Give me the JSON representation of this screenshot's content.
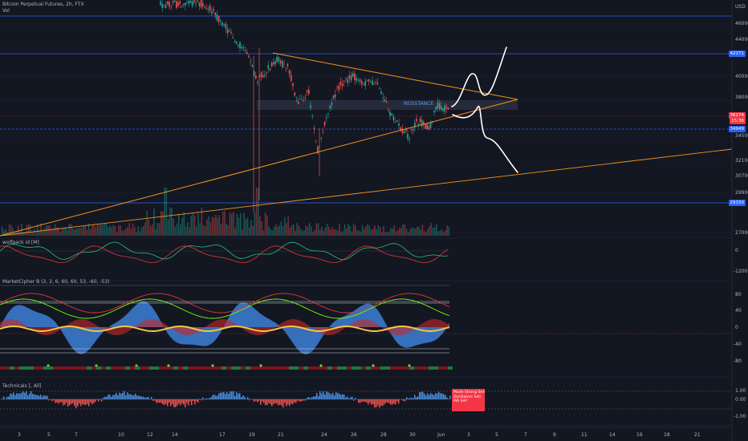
{
  "header": {
    "title": "Bitcoin Perpetual Futures, 2h, FTX",
    "vol": "Vol"
  },
  "annotations": {
    "resistance": "RESISTANCE"
  },
  "price_axis": {
    "ticks": [
      "46000",
      "44000",
      "40000",
      "38000",
      "34500",
      "32100",
      "30700",
      "29900",
      "27000"
    ],
    "tags": [
      {
        "text": "42271",
        "color": "#2962ff"
      },
      {
        "text": "36274",
        "color": "#f23645"
      },
      {
        "text": "15:36",
        "color": "#f23645"
      },
      {
        "text": "34949",
        "color": "#2962ff"
      },
      {
        "text": "29150",
        "color": "#2962ff"
      }
    ],
    "usd": "USD"
  },
  "indicators": {
    "wolfpack": {
      "label": "wolfpack id [M]",
      "ticks": [
        "0",
        "-1200"
      ]
    },
    "marketcipher": {
      "label": "MarketCipher B (2, 2, 6, 60, 60, 53, -60, -53)",
      "ticks": [
        "80",
        "40",
        "0",
        "-40",
        "-80"
      ]
    },
    "technicals": {
      "label": "Technicals [, All]",
      "ticks": [
        "1.00",
        "0.00",
        "-1.00"
      ]
    }
  },
  "technicals_box": {
    "lines": [
      "Mode     Strong Sell",
      "Oscillators  Sell",
      "MA   Sell"
    ]
  },
  "date_axis": [
    "3",
    "5",
    "7",
    "10",
    "12",
    "14",
    "17",
    "19",
    "21",
    "24",
    "26",
    "28",
    "30",
    "Jun",
    "3",
    "5",
    "7",
    "9",
    "11",
    "14",
    "16",
    "18",
    "21"
  ],
  "colors": {
    "background": "#131722",
    "up": "#26a69a",
    "down": "#ef5350",
    "trendline": "#f7931a",
    "hline": "#2962ff"
  }
}
